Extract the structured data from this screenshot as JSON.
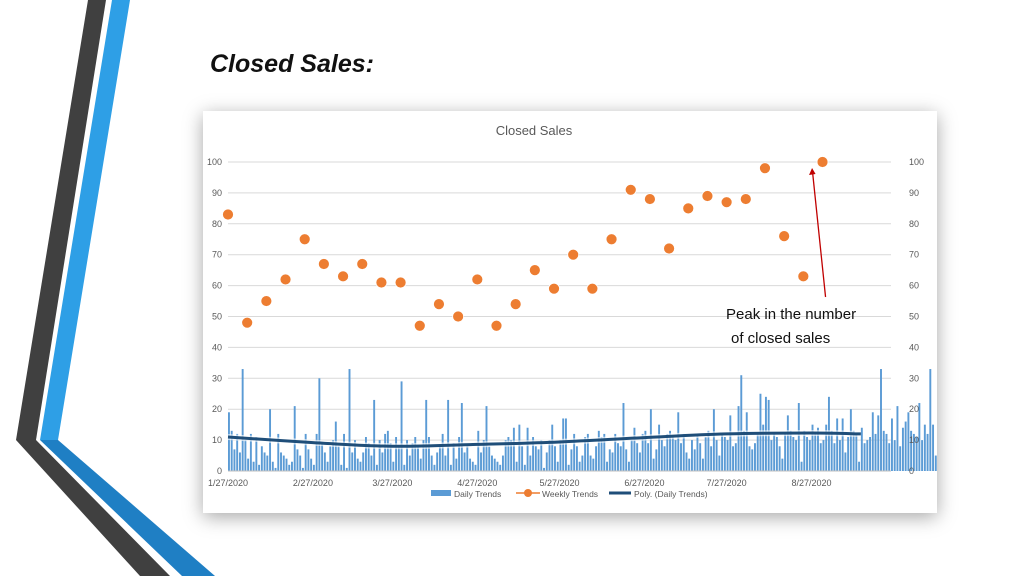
{
  "slide": {
    "title": "Closed Sales:"
  },
  "colors": {
    "daily": "#5b9bd5",
    "weekly": "#ed7d31",
    "poly": "#1f4e79",
    "arrow": "#c00000",
    "stripe_dark": "#404040",
    "stripe_blue": "#2e9fe6"
  },
  "chart_data": {
    "type": "bar",
    "title": "Closed Sales",
    "x_range": [
      "2020-01-27",
      "2020-09-25"
    ],
    "x_tick_labels": [
      "1/27/2020",
      "2/27/2020",
      "3/27/2020",
      "4/27/2020",
      "5/27/2020",
      "6/27/2020",
      "7/27/2020",
      "8/27/2020"
    ],
    "y_range": [
      0,
      100
    ],
    "y_ticks": [
      0,
      10,
      20,
      30,
      40,
      50,
      60,
      70,
      80,
      90,
      100
    ],
    "secondary_y_ticks": [
      0,
      10,
      20,
      30,
      40,
      50,
      60,
      70,
      80,
      90,
      100
    ],
    "gridlines": true,
    "legend_position": "bottom",
    "legend": [
      "Daily Trends",
      "Weekly Trends",
      "Poly. (Daily Trends)"
    ],
    "series": [
      {
        "name": "Daily Trends",
        "type": "bar",
        "start_date": "2020-01-27",
        "values": [
          19,
          13,
          7,
          12,
          6,
          33,
          10,
          4,
          12,
          3,
          11,
          2,
          8,
          6,
          5,
          20,
          3,
          1,
          12,
          6,
          5,
          4,
          2,
          3,
          21,
          7,
          5,
          1,
          12,
          7,
          4,
          2,
          12,
          30,
          9,
          6,
          3,
          8,
          10,
          16,
          8,
          2,
          12,
          1,
          33,
          6,
          10,
          4,
          3,
          6,
          11,
          9,
          5,
          23,
          2,
          10,
          6,
          12,
          13,
          9,
          3,
          11,
          8,
          29,
          2,
          10,
          5,
          9,
          11,
          8,
          4,
          10,
          23,
          11,
          5,
          2,
          6,
          8,
          12,
          5,
          23,
          2,
          9,
          4,
          11,
          22,
          6,
          8,
          4,
          3,
          2,
          13,
          6,
          10,
          21,
          8,
          5,
          4,
          3,
          2,
          5,
          10,
          11,
          10,
          14,
          3,
          15,
          8,
          2,
          14,
          5,
          11,
          8,
          7,
          10,
          1,
          6,
          10,
          15,
          8,
          3,
          10,
          17,
          17,
          2,
          7,
          12,
          8,
          3,
          5,
          11,
          12,
          5,
          4,
          8,
          13,
          11,
          12,
          3,
          7,
          6,
          12,
          9,
          8,
          22,
          7,
          3,
          10,
          14,
          9,
          6,
          12,
          13,
          9,
          20,
          4,
          7,
          15,
          10,
          8,
          12,
          13,
          11,
          10,
          19,
          9,
          12,
          6,
          4,
          10,
          7,
          12,
          9,
          4,
          11,
          13,
          8,
          20,
          10,
          5,
          12,
          11,
          10,
          18,
          8,
          9,
          21,
          31,
          13,
          19,
          8,
          7,
          9,
          12,
          25,
          15,
          24,
          23,
          10,
          12,
          11,
          8,
          4,
          12,
          18,
          13,
          11,
          10,
          22,
          3,
          13,
          11,
          10,
          15,
          12,
          14,
          9,
          10,
          15,
          24,
          13,
          9,
          17,
          10,
          17,
          6,
          11,
          20,
          13,
          12,
          3,
          14,
          9,
          10,
          11,
          19,
          12,
          18,
          33,
          13,
          12,
          9,
          17,
          10,
          21,
          8,
          14,
          16,
          19,
          13,
          12,
          11,
          22,
          10,
          15,
          12,
          33,
          15,
          5,
          17,
          9,
          16,
          12,
          10,
          24,
          13,
          12,
          11,
          26,
          15,
          17,
          35,
          14,
          12,
          19,
          8,
          16,
          21
        ]
      },
      {
        "name": "Weekly Trends",
        "type": "line-markers",
        "x": [
          "2020-01-27",
          "2020-02-03",
          "2020-02-10",
          "2020-02-17",
          "2020-02-24",
          "2020-03-02",
          "2020-03-09",
          "2020-03-16",
          "2020-03-23",
          "2020-03-30",
          "2020-04-06",
          "2020-04-13",
          "2020-04-20",
          "2020-04-27",
          "2020-05-04",
          "2020-05-11",
          "2020-05-18",
          "2020-05-25",
          "2020-06-01",
          "2020-06-08",
          "2020-06-15",
          "2020-06-22",
          "2020-06-29",
          "2020-07-06",
          "2020-07-13",
          "2020-07-20",
          "2020-07-27",
          "2020-08-03",
          "2020-08-10",
          "2020-08-17",
          "2020-08-24",
          "2020-08-31",
          "2020-09-07",
          "2020-09-14"
        ],
        "values": [
          83,
          48,
          55,
          62,
          75,
          67,
          63,
          67,
          61,
          61,
          47,
          54,
          50,
          62,
          47,
          54,
          65,
          59,
          70,
          59,
          75,
          91,
          88,
          72,
          85,
          89,
          87,
          88,
          98,
          76,
          63,
          100,
          null,
          null
        ]
      },
      {
        "name": "Poly. (Daily Trends)",
        "type": "trendline",
        "x": [
          "2020-01-27",
          "2020-02-27",
          "2020-03-27",
          "2020-04-27",
          "2020-05-27",
          "2020-06-27",
          "2020-07-27",
          "2020-08-27",
          "2020-09-14"
        ],
        "values": [
          11,
          9.2,
          8,
          8.6,
          9.4,
          10.8,
          12,
          12.3,
          12
        ]
      }
    ],
    "annotation": {
      "lines": [
        "Peak in the number",
        "of closed sales"
      ],
      "points_to": {
        "x": "2020-08-27",
        "y": 100
      }
    }
  }
}
